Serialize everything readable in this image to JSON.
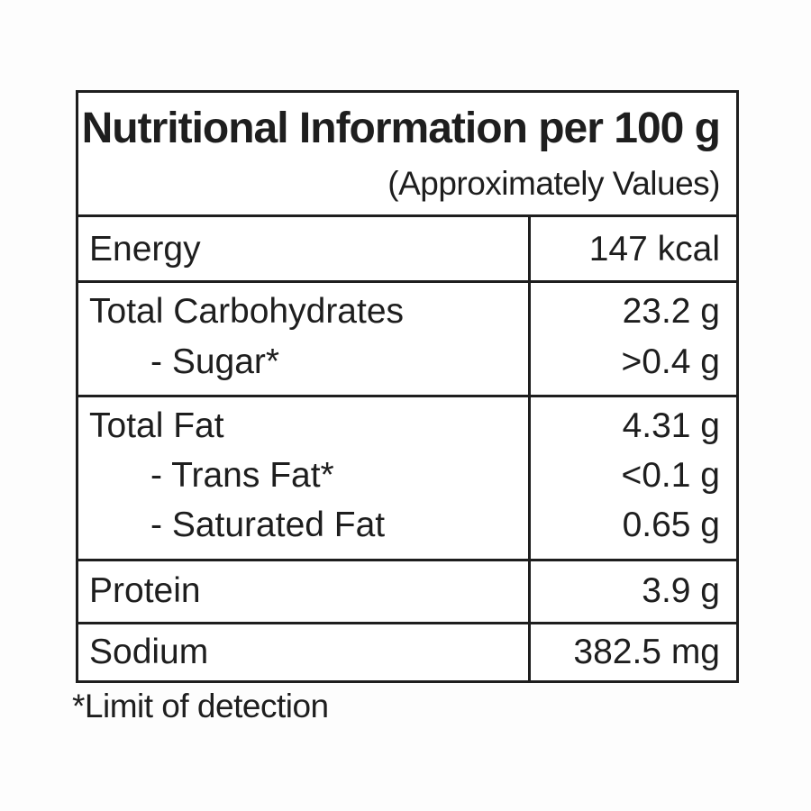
{
  "label": {
    "title": "Nutritional Information per 100 g",
    "subtitle": "(Approximately Values)",
    "rows": [
      {
        "name": "Energy",
        "value": "147 kcal"
      },
      {
        "name": "Total Carbohydrates",
        "value": "23.2 g"
      },
      {
        "name": "- Sugar*",
        "value": ">0.4 g"
      },
      {
        "name": "Total Fat",
        "value": "4.31 g"
      },
      {
        "name": "- Trans Fat*",
        "value": "<0.1 g"
      },
      {
        "name": "- Saturated Fat",
        "value": "0.65 g"
      },
      {
        "name": "Protein",
        "value": "3.9 g"
      },
      {
        "name": "Sodium",
        "value": "382.5 mg"
      }
    ],
    "footnote": "*Limit of detection"
  }
}
